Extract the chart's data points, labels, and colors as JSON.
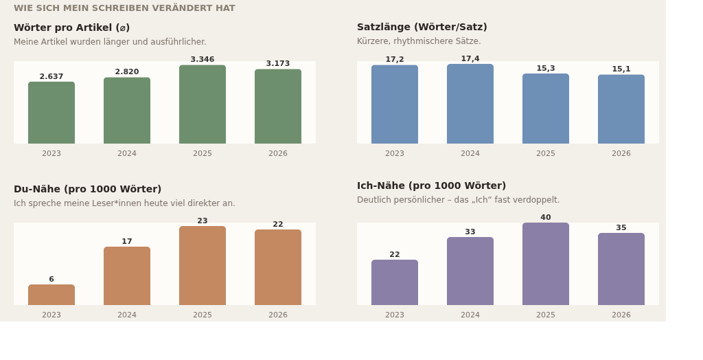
{
  "chart_data": [
    {
      "type": "bar",
      "title": "Wörter pro Artikel (⌀)",
      "subtitle": "Meine Artikel wurden länger und ausführlicher.",
      "annotations": [
        "WIE SICH MEIN SCHREIBEN VERÄNDERT HAT"
      ],
      "categories": [
        "2023",
        "2024",
        "2025",
        "2026"
      ],
      "values": [
        2637,
        2820,
        3346,
        3173
      ],
      "value_labels": [
        "2.637",
        "2.820",
        "3.346",
        "3.173"
      ],
      "color": "#6e8f6d"
    },
    {
      "type": "bar",
      "title": "Satzlänge (Wörter/Satz)",
      "subtitle": "Kürzere, rhythmischere Sätze.",
      "categories": [
        "2023",
        "2024",
        "2025",
        "2026"
      ],
      "values": [
        17.2,
        17.4,
        15.3,
        15.1
      ],
      "value_labels": [
        "17,2",
        "17,4",
        "15,3",
        "15,1"
      ],
      "color": "#6e8fb6"
    },
    {
      "type": "bar",
      "title": "Du-Nähe (pro 1000 Wörter)",
      "subtitle": "Ich spreche meine Leser*innen heute viel direkter an.",
      "categories": [
        "2023",
        "2024",
        "2025",
        "2026"
      ],
      "values": [
        6,
        17,
        23,
        22
      ],
      "data_labels": true,
      "color": "#c48960"
    },
    {
      "type": "bar",
      "title": "Ich-Nähe (pro 1000 Wörter)",
      "subtitle": "Deutlich persönlicher – das „Ich“ fast verdoppelt.",
      "categories": [
        "2023",
        "2024",
        "2025",
        "2026"
      ],
      "values": [
        22,
        33,
        40,
        35
      ],
      "data_labels": true,
      "color": "#8a7fa6"
    }
  ]
}
